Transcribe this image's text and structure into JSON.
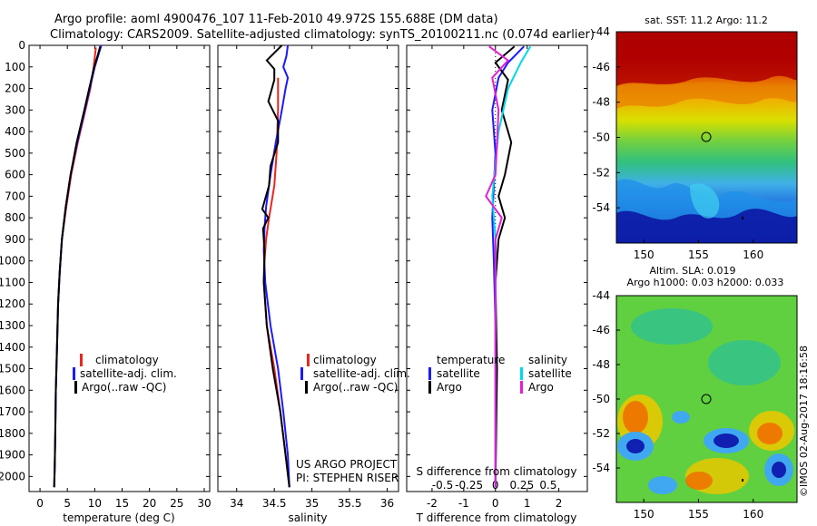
{
  "header": {
    "line1": "Argo profile: aoml 4900476_107 11-Feb-2010 49.972S 155.688E (DM data)",
    "line2": "Climatology: CARS2009. Satellite-adjusted climatology: synTS_20100211.nc (0.074d earlier)"
  },
  "footnote": {
    "project": "US ARGO PROJECT",
    "pi": "PI: STEPHEN RISER",
    "imos": "©IMOS 02-Aug-2017 18:16:58"
  },
  "colors": {
    "climatology": "#e8261c",
    "satellite": "#1a1aff",
    "argo": "#000000",
    "sal_satellite": "#00d8e8",
    "sal_argo": "#e020d0"
  },
  "chart_data": [
    {
      "id": "temperature",
      "type": "line",
      "xlabel": "temperature (deg C)",
      "xlim": [
        -2,
        31
      ],
      "xticks": [
        0,
        5,
        10,
        15,
        20,
        25,
        30
      ],
      "ylim": [
        2070,
        0
      ],
      "yticks": [
        0,
        100,
        200,
        300,
        400,
        500,
        600,
        700,
        800,
        900,
        1000,
        1100,
        1200,
        1300,
        1400,
        1500,
        1600,
        1700,
        1800,
        1900,
        2000
      ],
      "legend": [
        "climatology",
        "satellite-adj. clim.",
        "Argo(..raw -QC)"
      ],
      "series": [
        {
          "name": "climatology",
          "color": "#e8261c",
          "x": [
            10.2,
            9.8,
            9.2,
            8.3,
            6.9,
            5.7,
            4.8,
            4.0,
            3.6,
            3.3,
            3.1,
            2.9,
            2.8,
            2.7,
            2.6
          ],
          "y": [
            10,
            100,
            200,
            300,
            450,
            600,
            750,
            900,
            1050,
            1200,
            1400,
            1600,
            1800,
            1950,
            2050
          ]
        },
        {
          "name": "satellite-adj. clim.",
          "color": "#1a1aff",
          "x": [
            11.2,
            10.6,
            10.0,
            9.1,
            8.2,
            6.8,
            5.6,
            4.7,
            4.0,
            3.6,
            3.3,
            3.1,
            2.9,
            2.8,
            2.7,
            2.6
          ],
          "y": [
            0,
            50,
            100,
            200,
            300,
            450,
            600,
            750,
            900,
            1050,
            1200,
            1400,
            1600,
            1800,
            1950,
            2050
          ]
        },
        {
          "name": "Argo(..raw -QC)",
          "color": "#000000",
          "x": [
            11.0,
            10.5,
            9.9,
            9.0,
            8.1,
            6.7,
            5.6,
            4.7,
            4.0,
            3.6,
            3.3,
            3.1,
            2.9,
            2.8,
            2.7,
            2.6
          ],
          "y": [
            5,
            50,
            100,
            200,
            300,
            450,
            600,
            750,
            900,
            1050,
            1200,
            1400,
            1600,
            1800,
            1950,
            2050
          ]
        }
      ]
    },
    {
      "id": "salinity",
      "type": "line",
      "xlabel": "salinity",
      "xlim": [
        33.75,
        36.15
      ],
      "xticks": [
        34,
        34.5,
        35,
        35.5,
        36
      ],
      "ylim": [
        2070,
        0
      ],
      "legend": [
        "climatology",
        "satellite-adj. clim.",
        "Argo(..raw -QC)"
      ],
      "series": [
        {
          "name": "climatology",
          "color": "#e8261c",
          "x": [
            34.55,
            34.55,
            34.53,
            34.5,
            34.43,
            34.39,
            34.37,
            34.36,
            34.4,
            34.5,
            34.58,
            34.65,
            34.7
          ],
          "y": [
            150,
            300,
            500,
            650,
            800,
            900,
            1000,
            1100,
            1300,
            1500,
            1700,
            1900,
            2050
          ]
        },
        {
          "name": "satellite-adj. clim.",
          "color": "#1a1aff",
          "x": [
            34.68,
            34.66,
            34.62,
            34.68,
            34.65,
            34.6,
            34.52,
            34.45,
            34.39,
            34.37,
            34.36,
            34.38,
            34.45,
            34.55,
            34.62,
            34.68,
            34.7
          ],
          "y": [
            0,
            50,
            100,
            150,
            200,
            300,
            450,
            600,
            750,
            850,
            950,
            1100,
            1300,
            1500,
            1700,
            1900,
            2050
          ]
        },
        {
          "name": "Argo(..raw -QC)",
          "color": "#000000",
          "x": [
            34.6,
            34.4,
            34.5,
            34.5,
            34.42,
            34.55,
            34.55,
            34.45,
            34.43,
            34.34,
            34.42,
            34.35,
            34.37,
            34.36,
            34.4,
            34.48,
            34.58,
            34.65,
            34.7
          ],
          "y": [
            0,
            70,
            110,
            160,
            260,
            350,
            450,
            560,
            650,
            760,
            800,
            850,
            950,
            1100,
            1300,
            1500,
            1700,
            1900,
            2050
          ]
        }
      ]
    },
    {
      "id": "difference",
      "type": "line",
      "xlabel": "T difference from climatology",
      "xlabel_top": "S difference from climatology",
      "xlim": [
        -2.8,
        2.9
      ],
      "xticks": [
        -2,
        -1,
        0,
        1,
        2
      ],
      "xticklabels": [
        "-2",
        "-1",
        "0",
        "1",
        "2"
      ],
      "xticks_top": [
        -0.5,
        -0.25,
        0,
        0.25,
        0.5
      ],
      "xticklabels_top": [
        "-0.5",
        "-0.25",
        "0",
        "0.25",
        "0.5"
      ],
      "ylim": [
        2070,
        0
      ],
      "legend": {
        "temperature": [
          "temperature",
          "satellite",
          "Argo"
        ],
        "salinity": [
          "salinity",
          "satellite",
          "Argo"
        ]
      },
      "series": [
        {
          "name": "satellite",
          "group": "temperature",
          "color": "#1a1aff",
          "x": [
            0.9,
            0.4,
            0.1,
            -0.1,
            0.0,
            -0.1,
            -0.05,
            0.0,
            0.0,
            0.0
          ],
          "y": [
            5,
            80,
            150,
            300,
            500,
            800,
            1000,
            1300,
            1700,
            2050
          ]
        },
        {
          "name": "Argo",
          "group": "temperature",
          "color": "#000000",
          "x": [
            0.6,
            0.0,
            0.4,
            0.2,
            0.5,
            0.3,
            0.1,
            0.3,
            0.1,
            0.0,
            0.05,
            0.0
          ],
          "y": [
            5,
            80,
            160,
            300,
            450,
            600,
            700,
            800,
            900,
            1100,
            1500,
            2050
          ]
        },
        {
          "name": "satellite",
          "group": "salinity",
          "color": "#00d8e8",
          "x": [
            1.1,
            0.8,
            0.4,
            0.1,
            -0.1,
            0.0,
            0.0,
            0.0
          ],
          "y": [
            5,
            80,
            200,
            400,
            700,
            900,
            1300,
            2050
          ]
        },
        {
          "name": "Argo",
          "group": "salinity",
          "color": "#e020d0",
          "x": [
            -0.2,
            0.4,
            -0.1,
            0.1,
            0.0,
            -0.3,
            0.2,
            0.0,
            0.0
          ],
          "y": [
            5,
            70,
            150,
            300,
            600,
            700,
            800,
            900,
            2050
          ]
        }
      ]
    },
    {
      "id": "sst_map",
      "type": "heatmap",
      "title": "sat. SST: 11.2  Argo: 11.2",
      "xlim": [
        147.5,
        164
      ],
      "ylim": [
        -56,
        -44
      ],
      "xticks": [
        150,
        155,
        160
      ],
      "yticks": [
        -44,
        -46,
        -48,
        -50,
        -52,
        -54
      ],
      "marker": {
        "lon": 155.7,
        "lat": -50
      }
    },
    {
      "id": "sla_map",
      "type": "heatmap",
      "title": "Altim. SLA: 0.019",
      "subtitle": "Argo h1000: 0.03  h2000: 0.033",
      "xlim": [
        147.5,
        164
      ],
      "ylim": [
        -56,
        -44
      ],
      "xticks": [
        150,
        155,
        160
      ],
      "yticks": [
        -44,
        -46,
        -48,
        -50,
        -52,
        -54
      ],
      "marker": {
        "lon": 155.7,
        "lat": -50
      }
    }
  ]
}
